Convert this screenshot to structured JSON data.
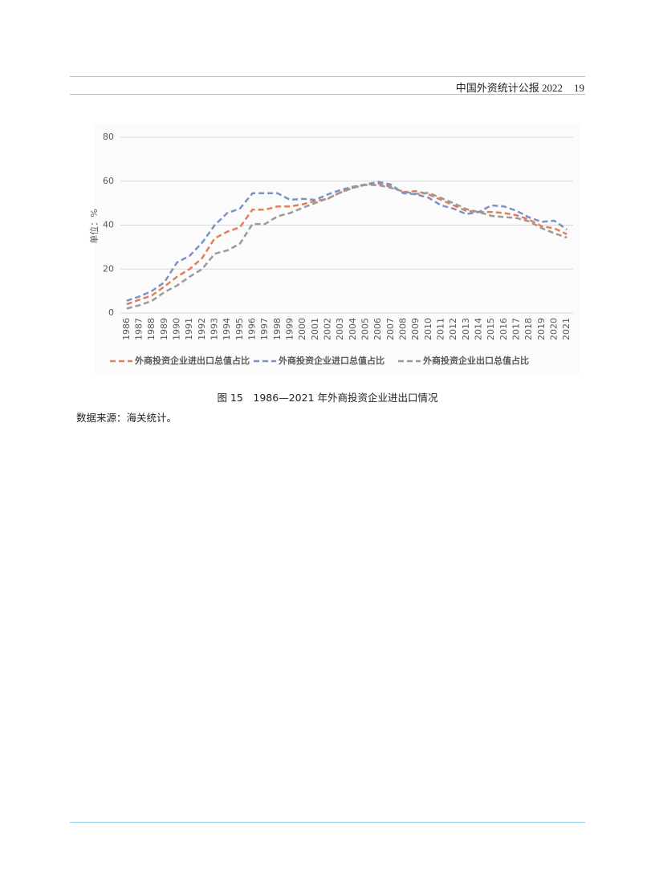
{
  "header": {
    "title": "中国外资统计公报 2022",
    "page": "19"
  },
  "chart_data": {
    "type": "line",
    "y_label": "单位：%",
    "categories": [
      "1986",
      "1987",
      "1988",
      "1989",
      "1990",
      "1991",
      "1992",
      "1993",
      "1994",
      "1995",
      "1996",
      "1997",
      "1998",
      "1999",
      "2000",
      "2001",
      "2002",
      "2003",
      "2004",
      "2005",
      "2006",
      "2007",
      "2008",
      "2009",
      "2010",
      "2011",
      "2012",
      "2013",
      "2014",
      "2015",
      "2016",
      "2017",
      "2018",
      "2019",
      "2020",
      "2021"
    ],
    "series": [
      {
        "name": "外商投资企业进出口总值占比",
        "color": "#e0805a",
        "values": [
          4,
          6,
          8,
          12,
          16.5,
          20,
          25,
          34,
          37,
          39,
          47,
          47,
          48.5,
          48.5,
          49.5,
          51,
          52,
          55,
          57,
          58.5,
          58.9,
          57.5,
          55,
          55.5,
          54,
          51.5,
          49,
          46.5,
          46,
          46,
          45.5,
          44.5,
          42.5,
          39.5,
          38.5,
          35.9
        ]
      },
      {
        "name": "外商投资企业进口总值占比",
        "color": "#7b93c2",
        "values": [
          5.6,
          7.5,
          10,
          14,
          23,
          26,
          32,
          40,
          45.5,
          47.5,
          54.5,
          54.5,
          54.5,
          51.5,
          52,
          51.5,
          54,
          56,
          57.5,
          58.5,
          59.7,
          58.5,
          54.5,
          54,
          52.5,
          49,
          47.5,
          45,
          46,
          49,
          48.5,
          46.5,
          43.5,
          41.5,
          42,
          38
        ]
      },
      {
        "name": "外商投资企业出口总值占比",
        "color": "#9a9a9a",
        "values": [
          2,
          3.5,
          5.5,
          9.5,
          12.5,
          16.5,
          20,
          27,
          28.5,
          31.5,
          40.5,
          40.5,
          44,
          45.5,
          47.9,
          50.1,
          52.2,
          54.8,
          57,
          58.3,
          58.2,
          57,
          55.3,
          54.2,
          54.7,
          52.4,
          49.9,
          47.3,
          45.9,
          44.2,
          43.7,
          43.2,
          41.7,
          38.6,
          36.3,
          34.3
        ]
      }
    ],
    "ylim": [
      0,
      80
    ],
    "yticks": [
      0,
      20,
      40,
      60,
      80
    ],
    "grid": true,
    "legend": "bottom"
  },
  "caption": "图 15　1986—2021 年外商投资企业进出口情况",
  "source": "数据来源：海关统计。"
}
